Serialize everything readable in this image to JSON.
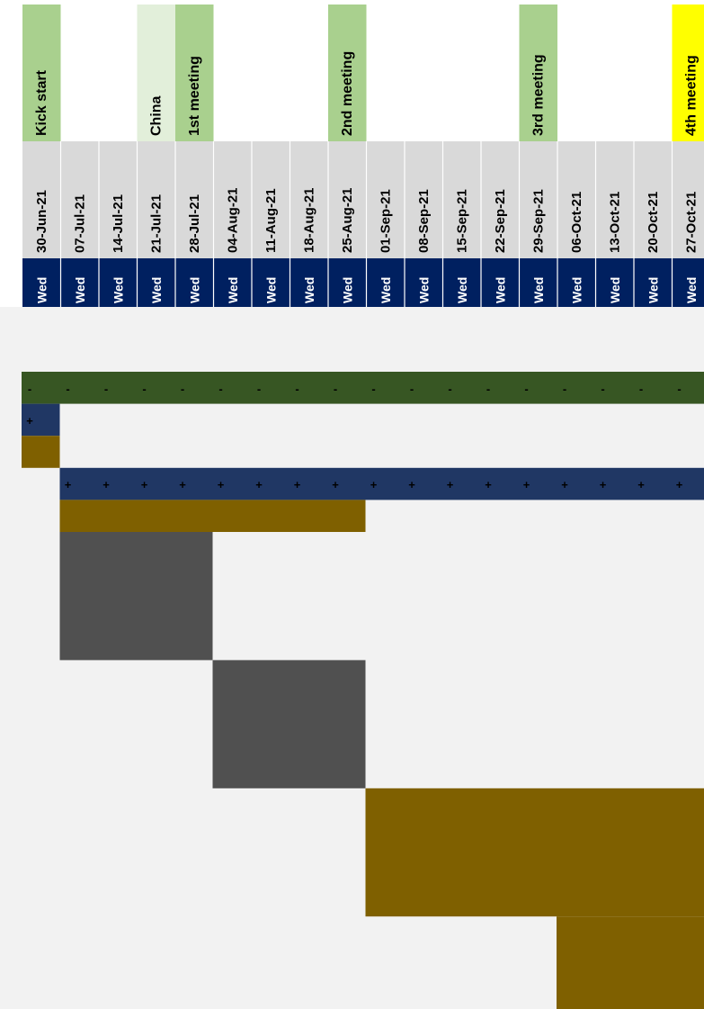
{
  "chart_data": {
    "type": "gantt",
    "columns": [
      {
        "day": "Wed",
        "date": "30-Jun-21",
        "milestone": "Kick start",
        "milestone_color": "#a9d08e"
      },
      {
        "day": "Wed",
        "date": "07-Jul-21",
        "milestone": "",
        "milestone_color": ""
      },
      {
        "day": "Wed",
        "date": "14-Jul-21",
        "milestone": "",
        "milestone_color": ""
      },
      {
        "day": "Wed",
        "date": "21-Jul-21",
        "milestone": "China",
        "milestone_color": "#e2efda"
      },
      {
        "day": "Wed",
        "date": "28-Jul-21",
        "milestone": "1st meeting",
        "milestone_color": "#a9d08e"
      },
      {
        "day": "Wed",
        "date": "04-Aug-21",
        "milestone": "",
        "milestone_color": ""
      },
      {
        "day": "Wed",
        "date": "11-Aug-21",
        "milestone": "",
        "milestone_color": ""
      },
      {
        "day": "Wed",
        "date": "18-Aug-21",
        "milestone": "",
        "milestone_color": ""
      },
      {
        "day": "Wed",
        "date": "25-Aug-21",
        "milestone": "2nd meeting",
        "milestone_color": "#a9d08e"
      },
      {
        "day": "Wed",
        "date": "01-Sep-21",
        "milestone": "",
        "milestone_color": ""
      },
      {
        "day": "Wed",
        "date": "08-Sep-21",
        "milestone": "",
        "milestone_color": ""
      },
      {
        "day": "Wed",
        "date": "15-Sep-21",
        "milestone": "",
        "milestone_color": ""
      },
      {
        "day": "Wed",
        "date": "22-Sep-21",
        "milestone": "",
        "milestone_color": ""
      },
      {
        "day": "Wed",
        "date": "29-Sep-21",
        "milestone": "3rd meeting",
        "milestone_color": "#a9d08e"
      },
      {
        "day": "Wed",
        "date": "06-Oct-21",
        "milestone": "",
        "milestone_color": ""
      },
      {
        "day": "Wed",
        "date": "13-Oct-21",
        "milestone": "",
        "milestone_color": ""
      },
      {
        "day": "Wed",
        "date": "20-Oct-21",
        "milestone": "",
        "milestone_color": ""
      },
      {
        "day": "Wed",
        "date": "27-Oct-21",
        "milestone": "4th meeting",
        "milestone_color": "#ffff00"
      }
    ],
    "bars": [
      {
        "kind": "summary",
        "marker": "-",
        "start_col": 0,
        "end_col": 17,
        "row_span": 1,
        "color": "#375623"
      },
      {
        "kind": "group",
        "marker": "+",
        "start_col": 0,
        "end_col": 0,
        "row_span": 1,
        "color": "#203764"
      },
      {
        "kind": "task",
        "marker": "",
        "start_col": 0,
        "end_col": 0,
        "row_span": 1,
        "color": "#7f6000"
      },
      {
        "kind": "group",
        "marker": "+",
        "start_col": 1,
        "end_col": 17,
        "row_span": 1,
        "color": "#203764"
      },
      {
        "kind": "task",
        "marker": "",
        "start_col": 1,
        "end_col": 8,
        "row_span": 1,
        "color": "#7f6000"
      },
      {
        "kind": "task",
        "marker": "",
        "start_col": 1,
        "end_col": 4,
        "row_span": 4,
        "color": "#505050"
      },
      {
        "kind": "task",
        "marker": "",
        "start_col": 5,
        "end_col": 8,
        "row_span": 4,
        "color": "#505050"
      },
      {
        "kind": "task",
        "marker": "",
        "start_col": 9,
        "end_col": 17,
        "row_span": 4,
        "color": "#7f6000"
      },
      {
        "kind": "task",
        "marker": "",
        "start_col": 14,
        "end_col": 17,
        "row_span": 4,
        "color": "#7f6000"
      }
    ],
    "colors": {
      "header_date_bg": "#d9d9d9",
      "header_day_bg": "#002060",
      "header_day_text": "#ffffff",
      "grid_bg": "#f2f2f2",
      "marker_text": "#000000"
    }
  }
}
